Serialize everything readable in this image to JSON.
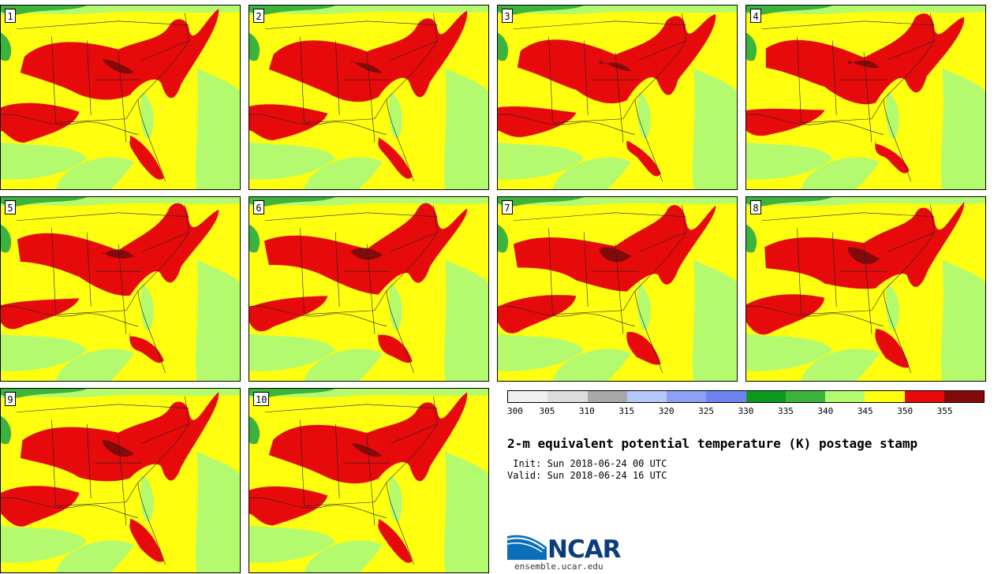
{
  "panels": [
    {
      "label": "1"
    },
    {
      "label": "2"
    },
    {
      "label": "3"
    },
    {
      "label": "4"
    },
    {
      "label": "5"
    },
    {
      "label": "6"
    },
    {
      "label": "7"
    },
    {
      "label": "8"
    },
    {
      "label": "9"
    },
    {
      "label": "10"
    }
  ],
  "colorbar": {
    "colors": [
      "#f0f0f0",
      "#dcdcdc",
      "#a8a8a8",
      "#b4c8fa",
      "#8ca0f5",
      "#6e82f0",
      "#0a9b1e",
      "#3cb43c",
      "#b4fa6e",
      "#ffff0f",
      "#e60a0a",
      "#820a0a"
    ],
    "tick_labels": [
      "300",
      "305",
      "310",
      "315",
      "320",
      "325",
      "330",
      "335",
      "340",
      "345",
      "350",
      "355"
    ]
  },
  "title": "2-m equivalent potential temperature (K) postage stamp",
  "init": " Init: Sun 2018-06-24 00 UTC",
  "valid": "Valid: Sun 2018-06-24 16 UTC",
  "logo": {
    "name": "ncar-logo",
    "text": "NCAR"
  },
  "site": "ensemble.ucar.edu"
}
